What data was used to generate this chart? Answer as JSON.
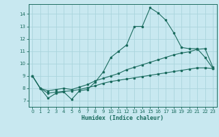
{
  "title": "",
  "xlabel": "Humidex (Indice chaleur)",
  "background_color": "#c8e8f0",
  "line_color": "#1a6b5e",
  "grid_color": "#aad4dc",
  "xlim": [
    -0.5,
    23.5
  ],
  "ylim": [
    6.5,
    14.8
  ],
  "xticks": [
    0,
    1,
    2,
    3,
    4,
    5,
    6,
    7,
    8,
    9,
    10,
    11,
    12,
    13,
    14,
    15,
    16,
    17,
    18,
    19,
    20,
    21,
    22,
    23
  ],
  "yticks": [
    7,
    8,
    9,
    10,
    11,
    12,
    13,
    14
  ],
  "series1_x": [
    0,
    1,
    2,
    3,
    4,
    5,
    6,
    7,
    8,
    9,
    10,
    11,
    12,
    13,
    14,
    15,
    16,
    17,
    18,
    19,
    20,
    21,
    22,
    23
  ],
  "series1_y": [
    9.0,
    8.0,
    7.2,
    7.6,
    7.7,
    7.1,
    7.8,
    7.9,
    8.5,
    9.3,
    10.5,
    11.0,
    11.5,
    13.0,
    13.0,
    14.5,
    14.1,
    13.5,
    12.5,
    11.3,
    11.2,
    11.2,
    10.5,
    9.6
  ],
  "series2_x": [
    0,
    1,
    2,
    3,
    4,
    5,
    6,
    7,
    8,
    9,
    10,
    11,
    12,
    13,
    14,
    15,
    16,
    17,
    18,
    19,
    20,
    21,
    22,
    23
  ],
  "series2_y": [
    9.0,
    8.0,
    7.8,
    7.9,
    8.0,
    7.9,
    8.1,
    8.3,
    8.6,
    8.8,
    9.0,
    9.2,
    9.5,
    9.7,
    9.9,
    10.1,
    10.3,
    10.5,
    10.7,
    10.85,
    10.95,
    11.15,
    11.2,
    9.7
  ],
  "series3_x": [
    0,
    1,
    2,
    3,
    4,
    5,
    6,
    7,
    8,
    9,
    10,
    11,
    12,
    13,
    14,
    15,
    16,
    17,
    18,
    19,
    20,
    21,
    22,
    23
  ],
  "series3_y": [
    9.0,
    8.0,
    7.6,
    7.7,
    7.75,
    7.8,
    7.9,
    8.05,
    8.2,
    8.4,
    8.55,
    8.65,
    8.75,
    8.85,
    8.95,
    9.05,
    9.15,
    9.25,
    9.35,
    9.45,
    9.55,
    9.65,
    9.65,
    9.6
  ]
}
